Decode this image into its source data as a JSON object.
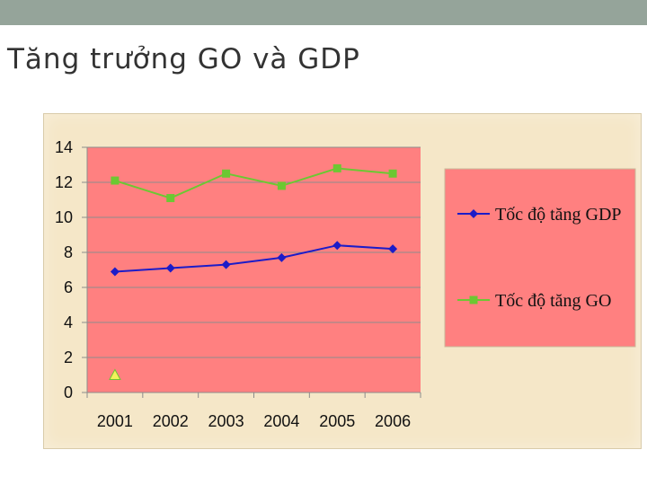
{
  "slide": {
    "title": "Tăng trưởng GO và GDP"
  },
  "colors": {
    "top_bar": "#95a49a",
    "plot_bg": "#ff8080",
    "frame_bg": "#f5e7c8",
    "gdp_series": "#1c1cc8",
    "go_series": "#6cc832",
    "extra_marker": "#f2f25a"
  },
  "chart_data": {
    "type": "line",
    "title": "",
    "xlabel": "",
    "ylabel": "",
    "categories": [
      "2001",
      "2002",
      "2003",
      "2004",
      "2005",
      "2006"
    ],
    "ylim": [
      0,
      14
    ],
    "yticks": [
      0,
      2,
      4,
      6,
      8,
      10,
      12,
      14
    ],
    "grid": true,
    "legend_position": "right",
    "series": [
      {
        "name": "Tốc độ tăng GDP",
        "marker": "diamond",
        "color": "#1c1cc8",
        "values": [
          6.9,
          7.1,
          7.3,
          7.7,
          8.4,
          8.2
        ]
      },
      {
        "name": "Tốc độ tăng GO",
        "marker": "square",
        "color": "#6cc832",
        "values": [
          12.1,
          11.1,
          12.5,
          11.8,
          12.8,
          12.5
        ]
      }
    ],
    "extra_points": [
      {
        "category": "2001",
        "value": 1.0,
        "marker": "triangle"
      }
    ]
  }
}
